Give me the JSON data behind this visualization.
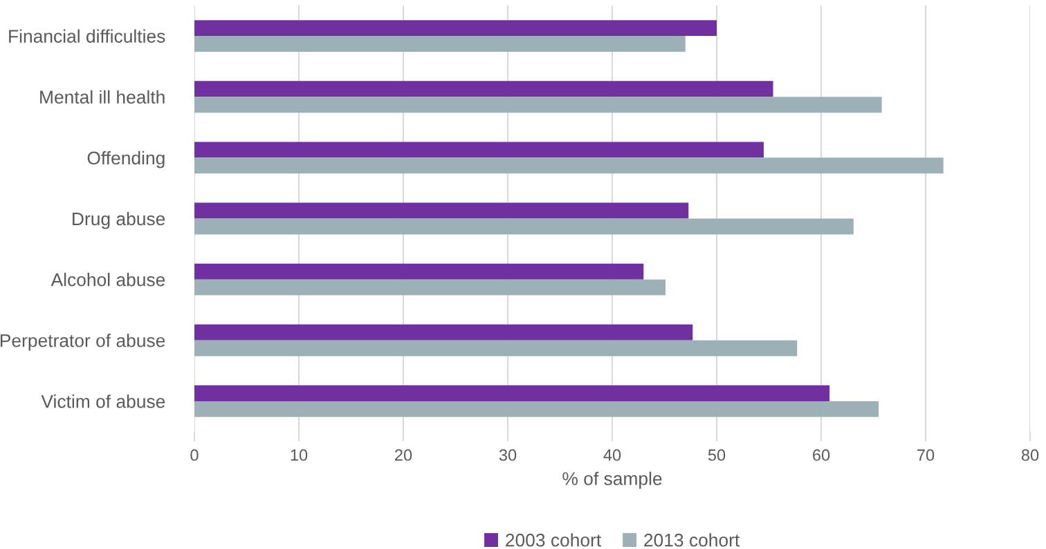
{
  "chart_data": {
    "type": "bar",
    "orientation": "horizontal",
    "xlabel": "% of sample",
    "categories": [
      "Financial difficulties",
      "Mental ill health",
      "Offending",
      "Drug abuse",
      "Alcohol abuse",
      "Perpetrator of abuse",
      "Victim of abuse"
    ],
    "series": [
      {
        "name": "2003 cohort",
        "color": "#7030a0",
        "values": [
          50.0,
          55.4,
          54.5,
          47.3,
          43.0,
          47.7,
          60.8
        ]
      },
      {
        "name": "2013 cohort",
        "color": "#9bb0b7",
        "values": [
          47.0,
          65.8,
          71.7,
          63.1,
          45.1,
          57.7,
          65.5
        ]
      }
    ],
    "xlim": [
      0,
      80
    ],
    "xticks": [
      0,
      10,
      20,
      30,
      40,
      50,
      60,
      70,
      80
    ],
    "grid": "x",
    "legend": "bottom"
  }
}
